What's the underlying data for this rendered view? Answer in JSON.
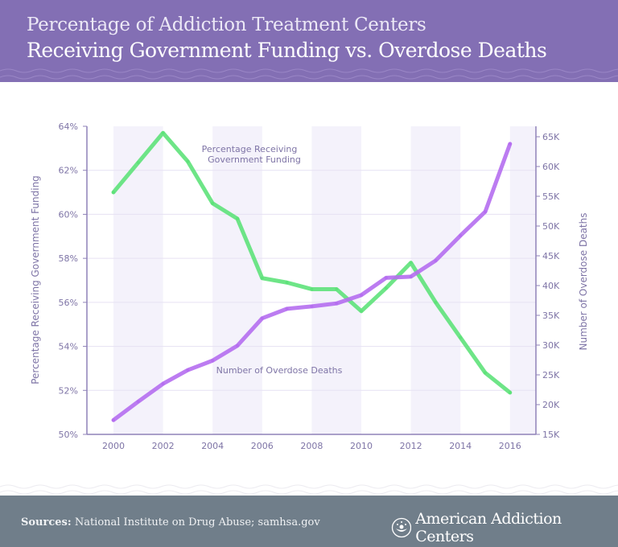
{
  "header": {
    "title_line1": "Percentage of Addiction Treatment Centers",
    "title_line2": "Receiving Government Funding vs. Overdose Deaths"
  },
  "footer": {
    "sources_label": "Sources:",
    "sources_text": "National Institute on Drug Abuse; samhsa.gov",
    "brand": "American Addiction Centers"
  },
  "colors": {
    "header": "#836fb4",
    "footer": "#707e8a",
    "green": "#5ee27a",
    "purple": "#b56ef0"
  },
  "chart_data": {
    "type": "line",
    "title": "Percentage of Addiction Treatment Centers Receiving Government Funding vs. Overdose Deaths",
    "x": [
      2000,
      2001,
      2002,
      2003,
      2004,
      2005,
      2006,
      2007,
      2008,
      2009,
      2010,
      2011,
      2012,
      2013,
      2014,
      2015,
      2016
    ],
    "x_ticks": [
      "2000",
      "2002",
      "2004",
      "2006",
      "2008",
      "2010",
      "2012",
      "2014",
      "2016"
    ],
    "ylabel": "Percentage Receiving Government Funding",
    "ylabel_right": "Number of Overdose Deaths",
    "ylim": [
      50,
      64
    ],
    "ylim_right": [
      15000,
      65000
    ],
    "y_ticks": [
      "64%",
      "62%",
      "60%",
      "58%",
      "56%",
      "54%",
      "52%",
      "50%"
    ],
    "y_ticks_right": [
      "65K",
      "60K",
      "55K",
      "50K",
      "45K",
      "40K",
      "35K",
      "30K",
      "25K",
      "20K",
      "15K"
    ],
    "series": [
      {
        "name": "Percentage Receiving Government Funding",
        "label_line1": "Percentage Receiving",
        "label_line2": "Government Funding",
        "axis": "left",
        "color": "#5ee27a",
        "values": [
          61.0,
          62.35,
          63.7,
          62.4,
          60.5,
          59.8,
          57.1,
          56.9,
          56.6,
          56.6,
          55.6,
          56.65,
          57.8,
          56.0,
          54.4,
          52.8,
          51.9
        ]
      },
      {
        "name": "Number of Overdose Deaths",
        "label": "Number of Overdose Deaths",
        "axis": "right",
        "color": "#b56ef0",
        "values": [
          17400,
          20500,
          23500,
          25800,
          27400,
          29900,
          34500,
          36100,
          36500,
          37000,
          38400,
          41300,
          41500,
          44200,
          48400,
          52400,
          63800
        ]
      }
    ]
  }
}
